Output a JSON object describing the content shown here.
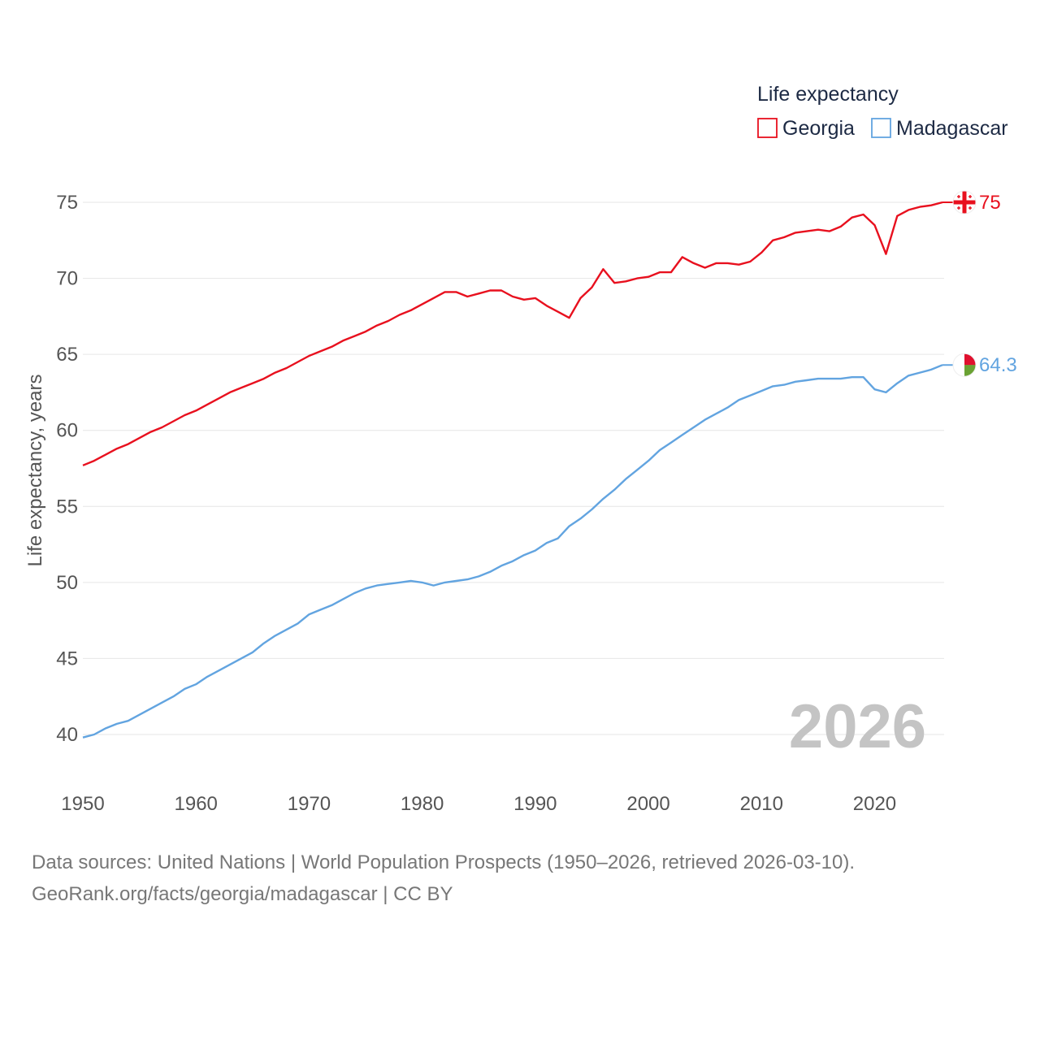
{
  "chart_data": {
    "type": "line",
    "title": "Life expectancy",
    "ylabel": "Life expectancy, years",
    "xlabel": "",
    "xlim": [
      1950,
      2026
    ],
    "ylim": [
      38.5,
      75.5
    ],
    "y_ticks": [
      40,
      45,
      50,
      55,
      60,
      65,
      70,
      75
    ],
    "x_ticks": [
      1950,
      1960,
      1970,
      1980,
      1990,
      2000,
      2010,
      2020
    ],
    "grid": true,
    "legend_position": "top-right",
    "year_label": "2026",
    "series": [
      {
        "name": "Georgia",
        "color": "#e8101e",
        "end_label": "75",
        "flag_icon": "georgia-flag-icon",
        "points": [
          [
            1950,
            57.7
          ],
          [
            1951,
            58.0
          ],
          [
            1952,
            58.4
          ],
          [
            1953,
            58.8
          ],
          [
            1954,
            59.1
          ],
          [
            1955,
            59.5
          ],
          [
            1956,
            59.9
          ],
          [
            1957,
            60.2
          ],
          [
            1958,
            60.6
          ],
          [
            1959,
            61.0
          ],
          [
            1960,
            61.3
          ],
          [
            1961,
            61.7
          ],
          [
            1962,
            62.1
          ],
          [
            1963,
            62.5
          ],
          [
            1964,
            62.8
          ],
          [
            1965,
            63.1
          ],
          [
            1966,
            63.4
          ],
          [
            1967,
            63.8
          ],
          [
            1968,
            64.1
          ],
          [
            1969,
            64.5
          ],
          [
            1970,
            64.9
          ],
          [
            1971,
            65.2
          ],
          [
            1972,
            65.5
          ],
          [
            1973,
            65.9
          ],
          [
            1974,
            66.2
          ],
          [
            1975,
            66.5
          ],
          [
            1976,
            66.9
          ],
          [
            1977,
            67.2
          ],
          [
            1978,
            67.6
          ],
          [
            1979,
            67.9
          ],
          [
            1980,
            68.3
          ],
          [
            1981,
            68.7
          ],
          [
            1982,
            69.1
          ],
          [
            1983,
            69.1
          ],
          [
            1984,
            68.8
          ],
          [
            1985,
            69.0
          ],
          [
            1986,
            69.2
          ],
          [
            1987,
            69.2
          ],
          [
            1988,
            68.8
          ],
          [
            1989,
            68.6
          ],
          [
            1990,
            68.7
          ],
          [
            1991,
            68.2
          ],
          [
            1992,
            67.8
          ],
          [
            1993,
            67.4
          ],
          [
            1994,
            68.7
          ],
          [
            1995,
            69.4
          ],
          [
            1996,
            70.6
          ],
          [
            1997,
            69.7
          ],
          [
            1998,
            69.8
          ],
          [
            1999,
            70.0
          ],
          [
            2000,
            70.1
          ],
          [
            2001,
            70.4
          ],
          [
            2002,
            70.4
          ],
          [
            2003,
            71.4
          ],
          [
            2004,
            71.0
          ],
          [
            2005,
            70.7
          ],
          [
            2006,
            71.0
          ],
          [
            2007,
            71.0
          ],
          [
            2008,
            70.9
          ],
          [
            2009,
            71.1
          ],
          [
            2010,
            71.7
          ],
          [
            2011,
            72.5
          ],
          [
            2012,
            72.7
          ],
          [
            2013,
            73.0
          ],
          [
            2014,
            73.1
          ],
          [
            2015,
            73.2
          ],
          [
            2016,
            73.1
          ],
          [
            2017,
            73.4
          ],
          [
            2018,
            74.0
          ],
          [
            2019,
            74.2
          ],
          [
            2020,
            73.5
          ],
          [
            2021,
            71.6
          ],
          [
            2022,
            74.1
          ],
          [
            2023,
            74.5
          ],
          [
            2024,
            74.7
          ],
          [
            2025,
            74.8
          ],
          [
            2026,
            75.0
          ]
        ]
      },
      {
        "name": "Madagascar",
        "color": "#62a4e0",
        "end_label": "64.3",
        "flag_icon": "madagascar-flag-icon",
        "points": [
          [
            1950,
            39.8
          ],
          [
            1951,
            40.0
          ],
          [
            1952,
            40.4
          ],
          [
            1953,
            40.7
          ],
          [
            1954,
            40.9
          ],
          [
            1955,
            41.3
          ],
          [
            1956,
            41.7
          ],
          [
            1957,
            42.1
          ],
          [
            1958,
            42.5
          ],
          [
            1959,
            43.0
          ],
          [
            1960,
            43.3
          ],
          [
            1961,
            43.8
          ],
          [
            1962,
            44.2
          ],
          [
            1963,
            44.6
          ],
          [
            1964,
            45.0
          ],
          [
            1965,
            45.4
          ],
          [
            1966,
            46.0
          ],
          [
            1967,
            46.5
          ],
          [
            1968,
            46.9
          ],
          [
            1969,
            47.3
          ],
          [
            1970,
            47.9
          ],
          [
            1971,
            48.2
          ],
          [
            1972,
            48.5
          ],
          [
            1973,
            48.9
          ],
          [
            1974,
            49.3
          ],
          [
            1975,
            49.6
          ],
          [
            1976,
            49.8
          ],
          [
            1977,
            49.9
          ],
          [
            1978,
            50.0
          ],
          [
            1979,
            50.1
          ],
          [
            1980,
            50.0
          ],
          [
            1981,
            49.8
          ],
          [
            1982,
            50.0
          ],
          [
            1983,
            50.1
          ],
          [
            1984,
            50.2
          ],
          [
            1985,
            50.4
          ],
          [
            1986,
            50.7
          ],
          [
            1987,
            51.1
          ],
          [
            1988,
            51.4
          ],
          [
            1989,
            51.8
          ],
          [
            1990,
            52.1
          ],
          [
            1991,
            52.6
          ],
          [
            1992,
            52.9
          ],
          [
            1993,
            53.7
          ],
          [
            1994,
            54.2
          ],
          [
            1995,
            54.8
          ],
          [
            1996,
            55.5
          ],
          [
            1997,
            56.1
          ],
          [
            1998,
            56.8
          ],
          [
            1999,
            57.4
          ],
          [
            2000,
            58.0
          ],
          [
            2001,
            58.7
          ],
          [
            2002,
            59.2
          ],
          [
            2003,
            59.7
          ],
          [
            2004,
            60.2
          ],
          [
            2005,
            60.7
          ],
          [
            2006,
            61.1
          ],
          [
            2007,
            61.5
          ],
          [
            2008,
            62.0
          ],
          [
            2009,
            62.3
          ],
          [
            2010,
            62.6
          ],
          [
            2011,
            62.9
          ],
          [
            2012,
            63.0
          ],
          [
            2013,
            63.2
          ],
          [
            2014,
            63.3
          ],
          [
            2015,
            63.4
          ],
          [
            2016,
            63.4
          ],
          [
            2017,
            63.4
          ],
          [
            2018,
            63.5
          ],
          [
            2019,
            63.5
          ],
          [
            2020,
            62.7
          ],
          [
            2021,
            62.5
          ],
          [
            2022,
            63.1
          ],
          [
            2023,
            63.6
          ],
          [
            2024,
            63.8
          ],
          [
            2025,
            64.0
          ],
          [
            2026,
            64.3
          ]
        ]
      }
    ]
  },
  "footer": {
    "source_line": "Data sources: United Nations | World Population Prospects (1950–2026, retrieved 2026-03-10).",
    "url_line": "GeoRank.org/facts/georgia/madagascar | CC BY"
  }
}
